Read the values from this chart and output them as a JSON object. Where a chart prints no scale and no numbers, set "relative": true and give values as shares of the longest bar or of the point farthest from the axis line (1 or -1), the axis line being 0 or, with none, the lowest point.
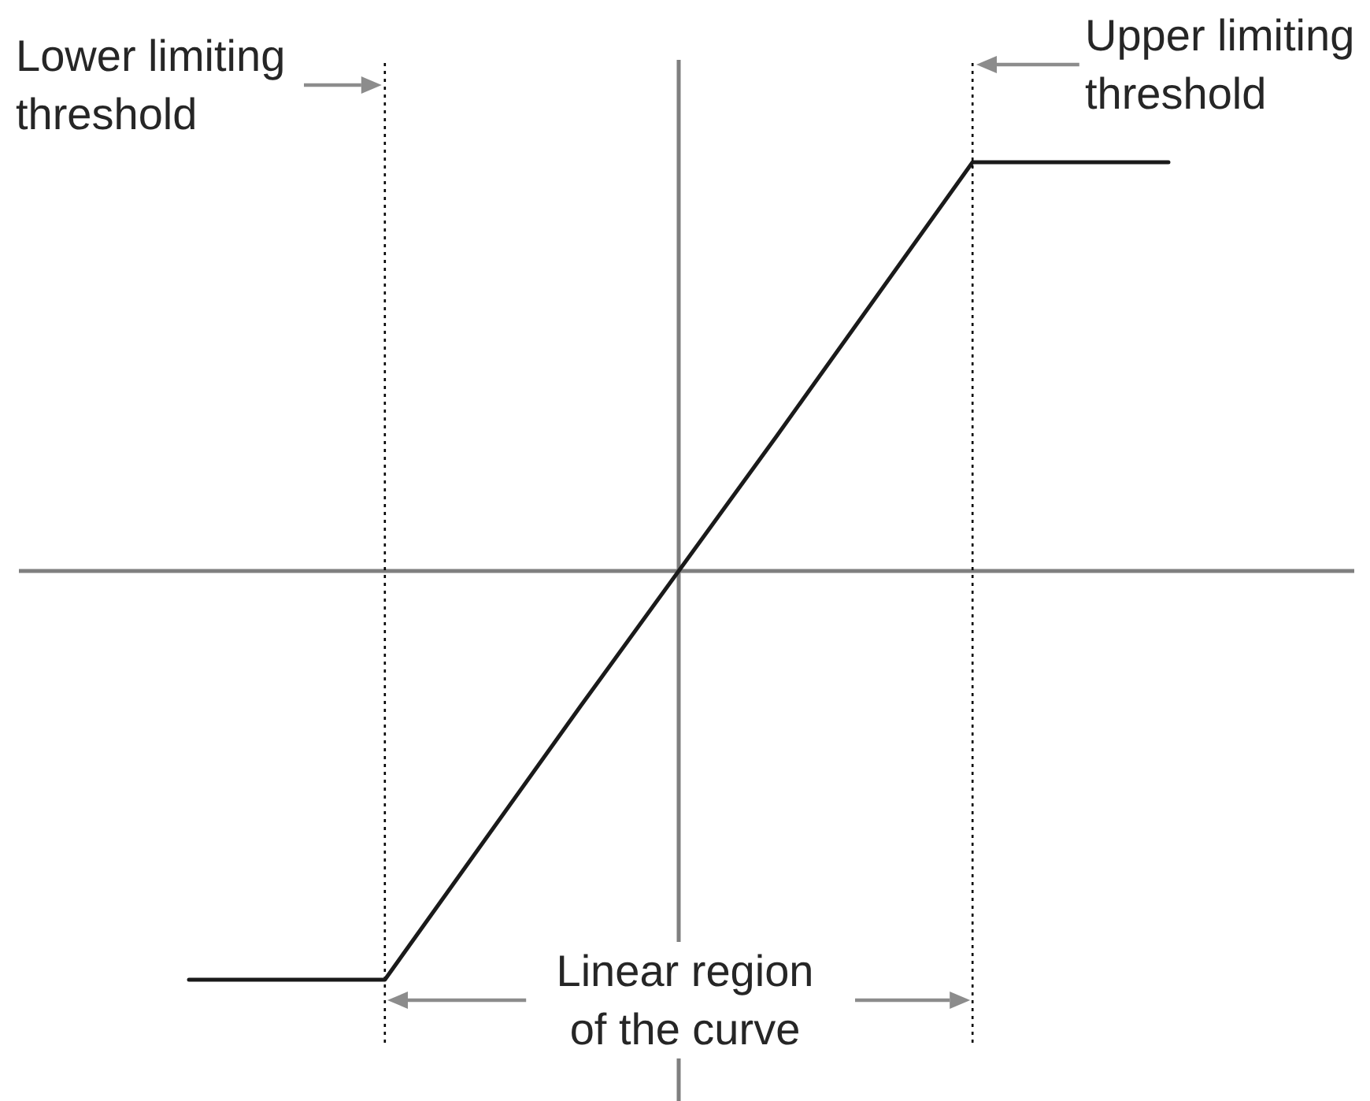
{
  "chart_data": {
    "type": "line",
    "relative": true,
    "categories": [
      null,
      null,
      null,
      null,
      null,
      null
    ],
    "series": [
      {
        "color": "#1a1a1a",
        "values": [
          -1,
          -1,
          -0.33,
          0.33,
          1,
          1
        ]
      }
    ],
    "annotations": [
      "Lower limiting threshold",
      "Upper limiting threshold",
      "Linear region of the curve"
    ],
    "marker": "none"
  }
}
